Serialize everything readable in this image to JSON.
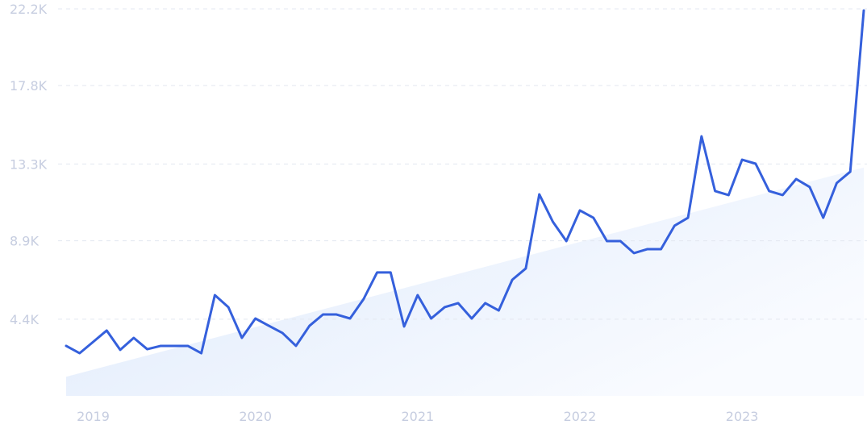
{
  "chart_data": {
    "type": "line",
    "categories": [
      null,
      null,
      "2019",
      null,
      null,
      null,
      null,
      null,
      null,
      null,
      null,
      null,
      null,
      null,
      "2020",
      null,
      null,
      null,
      null,
      null,
      null,
      null,
      null,
      null,
      null,
      null,
      "2021",
      null,
      null,
      null,
      null,
      null,
      null,
      null,
      null,
      null,
      null,
      null,
      "2022",
      null,
      null,
      null,
      null,
      null,
      null,
      null,
      null,
      null,
      null,
      null,
      "2023",
      null,
      null,
      null,
      null,
      null,
      null,
      null,
      null,
      null
    ],
    "series": [
      {
        "color": "#3560dc",
        "values": [
          2870,
          2450,
          3100,
          3750,
          2640,
          3330,
          2680,
          2870,
          2870,
          2870,
          2450,
          5780,
          5090,
          3330,
          4440,
          4020,
          3610,
          2870,
          4020,
          4670,
          4670,
          4440,
          5550,
          7080,
          7080,
          3980,
          5780,
          4440,
          5090,
          5320,
          4440,
          5320,
          4900,
          6660,
          7310,
          11560,
          9990,
          8880,
          10640,
          10220,
          8880,
          8880,
          8190,
          8420,
          8420,
          9760,
          10220,
          14890,
          11750,
          11520,
          13550,
          13320,
          11750,
          11520,
          12440,
          11980,
          10220,
          12210,
          12860,
          22110
        ]
      }
    ],
    "trend": {
      "start": 1100,
      "end": 13100
    },
    "ylim": [
      0,
      22200
    ],
    "yticks": [
      {
        "value": 4400,
        "label": "4.4K"
      },
      {
        "value": 8900,
        "label": "8.9K"
      },
      {
        "value": 13300,
        "label": "13.3K"
      },
      {
        "value": 17800,
        "label": "17.8K"
      },
      {
        "value": 22200,
        "label": "22.2K"
      }
    ],
    "grid": true
  }
}
